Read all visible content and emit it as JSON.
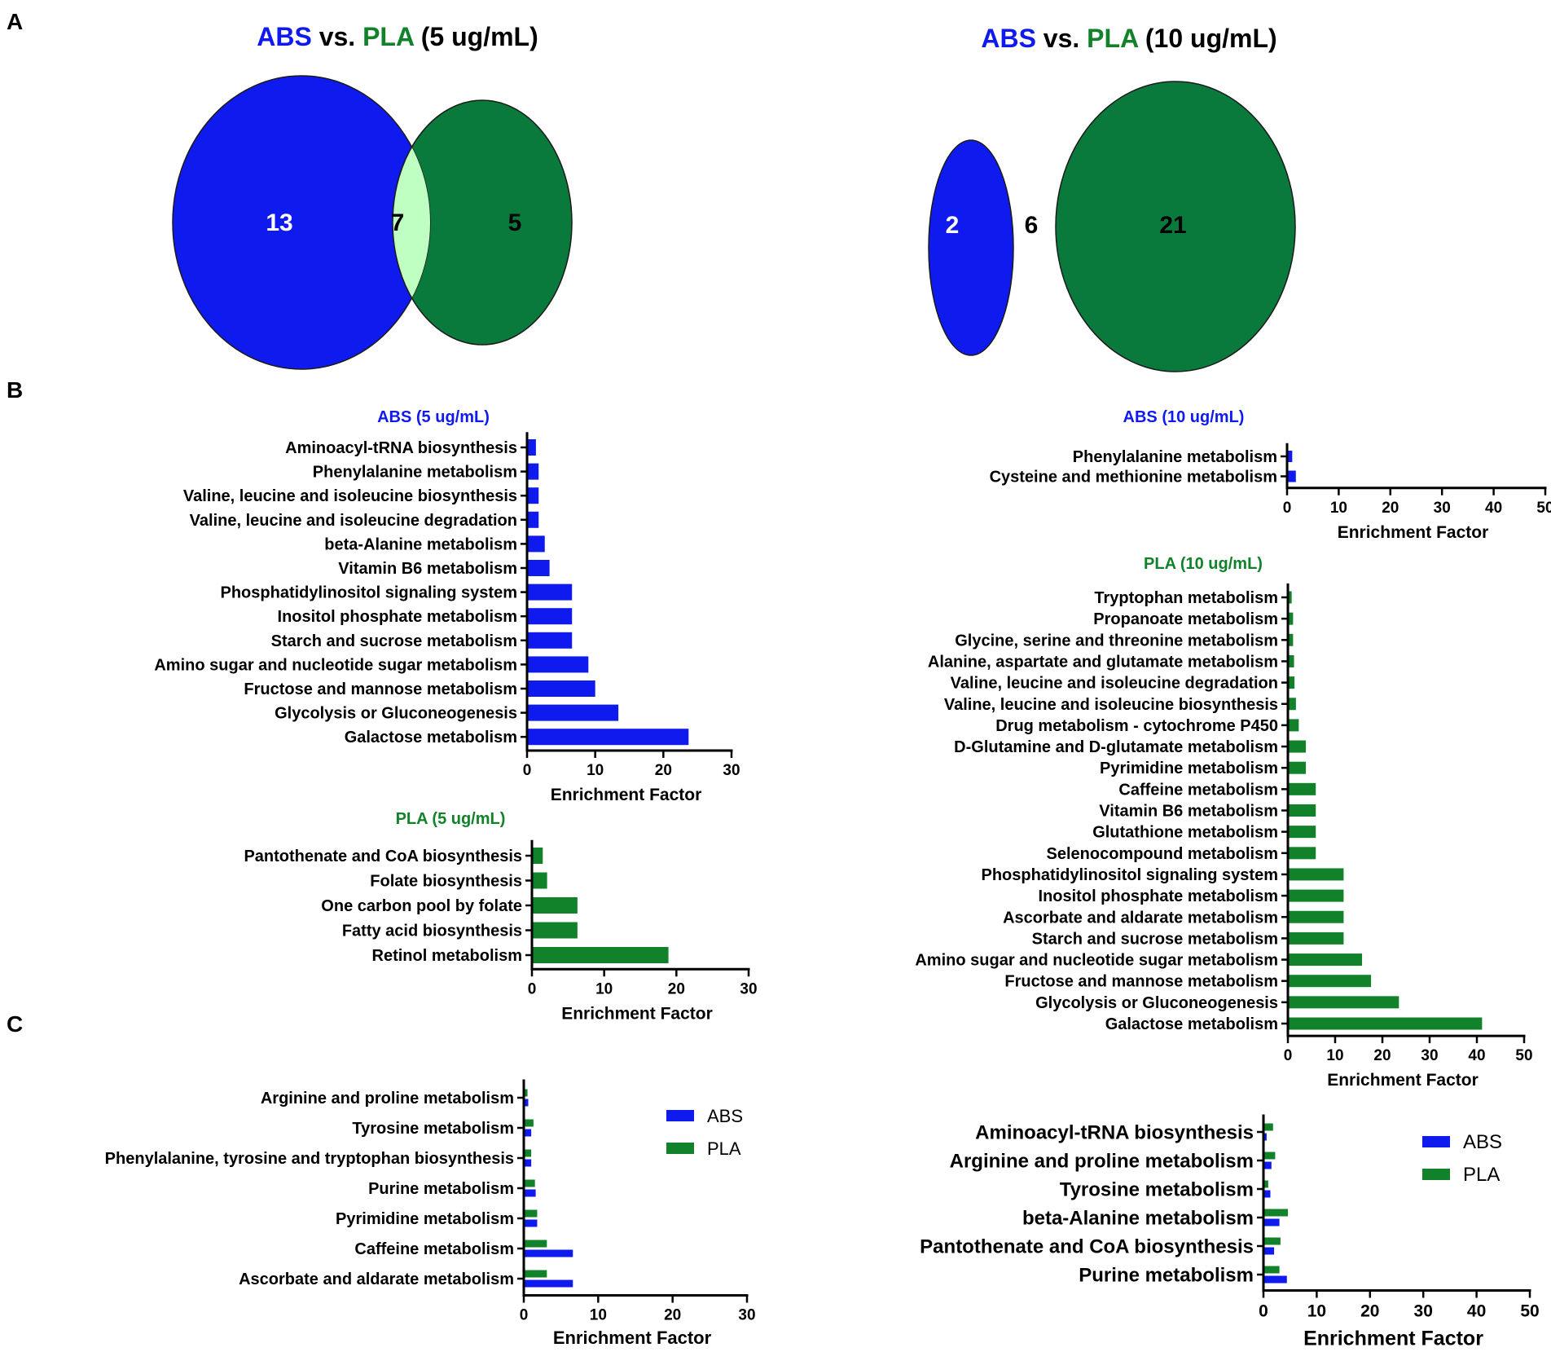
{
  "panel_labels": {
    "a": "A",
    "b": "B",
    "c": "C"
  },
  "colors": {
    "abs": "#0f1aef",
    "pla": "#11822a",
    "pla_dark": "#0a7a3c",
    "overlap": "#bfffc2",
    "venn_outline": "#1a1a1a",
    "axis": "#000000"
  },
  "venn": [
    {
      "title_parts": [
        "ABS",
        " vs. ",
        "PLA",
        " (5 ug/mL)"
      ],
      "abs_only": "13",
      "shared": "7",
      "pla_only": "5"
    },
    {
      "title_parts": [
        "ABS",
        " vs. ",
        "PLA",
        " (10 ug/mL)"
      ],
      "abs_only": "2",
      "shared": "6",
      "pla_only": "21"
    }
  ],
  "chart_data": [
    {
      "id": "abs5",
      "type": "bar",
      "orientation": "horizontal",
      "title": "ABS (5 ug/mL)",
      "xlabel": "Enrichment Factor",
      "ylabel": "",
      "xlim": [
        0,
        30
      ],
      "ticks": [
        0,
        10,
        20,
        30
      ],
      "color": "#0f1aef",
      "categories": [
        "Aminoacyl-tRNA biosynthesis",
        "Phenylalanine metabolism",
        "Valine, leucine and isoleucine biosynthesis",
        "Valine, leucine and isoleucine degradation",
        "beta-Alanine metabolism",
        "Vitamin B6 metabolism",
        "Phosphatidylinositol signaling system",
        "Inositol phosphate metabolism",
        "Starch and sucrose metabolism",
        "Amino sugar and nucleotide sugar metabolism",
        "Fructose and mannose metabolism",
        "Glycolysis or Gluconeogenesis",
        "Galactose metabolism"
      ],
      "values": [
        1.3,
        1.7,
        1.7,
        1.7,
        2.6,
        3.3,
        6.6,
        6.6,
        6.6,
        9.0,
        10.0,
        13.4,
        23.7
      ]
    },
    {
      "id": "pla5",
      "type": "bar",
      "orientation": "horizontal",
      "title": "PLA (5 ug/mL)",
      "xlabel": "Enrichment Factor",
      "ylabel": "",
      "xlim": [
        0,
        30
      ],
      "ticks": [
        0,
        10,
        20,
        30
      ],
      "color": "#11822a",
      "categories": [
        "Pantothenate and CoA biosynthesis",
        "Folate biosynthesis",
        "One carbon pool by folate",
        "Fatty acid biosynthesis",
        "Retinol metabolism"
      ],
      "values": [
        1.5,
        2.1,
        6.3,
        6.3,
        18.9
      ]
    },
    {
      "id": "abs10",
      "type": "bar",
      "orientation": "horizontal",
      "title": "ABS (10 ug/mL)",
      "xlabel": "Enrichment Factor",
      "ylabel": "",
      "xlim": [
        0,
        50
      ],
      "ticks": [
        0,
        10,
        20,
        30,
        40,
        50
      ],
      "color": "#0f1aef",
      "categories": [
        "Phenylalanine metabolism",
        "Cysteine and methionine metabolism"
      ],
      "values": [
        1.0,
        1.7
      ]
    },
    {
      "id": "pla10",
      "type": "bar",
      "orientation": "horizontal",
      "title": "PLA (10 ug/mL)",
      "xlabel": "Enrichment Factor",
      "ylabel": "",
      "xlim": [
        0,
        50
      ],
      "ticks": [
        0,
        10,
        20,
        30,
        40,
        50
      ],
      "color": "#11822a",
      "categories": [
        "Tryptophan metabolism",
        "Propanoate metabolism",
        "Glycine, serine and threonine metabolism",
        "Alanine, aspartate and glutamate metabolism",
        "Valine, leucine and isoleucine degradation",
        "Valine, leucine and isoleucine biosynthesis",
        "Drug metabolism - cytochrome P450",
        "D-Glutamine and D-glutamate metabolism",
        "Pyrimidine metabolism",
        "Caffeine metabolism",
        "Vitamin B6 metabolism",
        "Glutathione metabolism",
        "Selenocompound metabolism",
        "Phosphatidylinositol signaling system",
        "Inositol phosphate metabolism",
        "Ascorbate and aldarate metabolism",
        "Starch and sucrose metabolism",
        "Amino sugar and nucleotide sugar metabolism",
        "Fructose and mannose metabolism",
        "Glycolysis or Gluconeogenesis",
        "Galactose metabolism"
      ],
      "values": [
        0.8,
        1.1,
        1.1,
        1.3,
        1.4,
        1.7,
        2.3,
        3.8,
        3.8,
        5.9,
        5.9,
        5.9,
        5.9,
        11.8,
        11.8,
        11.8,
        11.8,
        15.7,
        17.6,
        23.5,
        41.1
      ]
    },
    {
      "id": "c5",
      "type": "bar",
      "orientation": "horizontal",
      "title": "",
      "xlabel": "Enrichment Factor",
      "ylabel": "",
      "xlim": [
        0,
        30
      ],
      "ticks": [
        0,
        10,
        20,
        30
      ],
      "legend": "top-right",
      "categories": [
        "Arginine and proline metabolism",
        "Tyrosine metabolism",
        "Phenylalanine, tyrosine and tryptophan biosynthesis",
        "Purine metabolism",
        "Pyrimidine metabolism",
        "Caffeine metabolism",
        "Ascorbate and aldarate metabolism"
      ],
      "series": [
        {
          "name": "ABS",
          "color": "#0f1aef",
          "values": [
            0.6,
            1.0,
            1.0,
            1.6,
            1.8,
            6.6,
            6.6
          ]
        },
        {
          "name": "PLA",
          "color": "#11822a",
          "values": [
            0.5,
            1.3,
            1.0,
            1.5,
            1.8,
            3.1,
            3.1
          ]
        }
      ]
    },
    {
      "id": "c10",
      "type": "bar",
      "orientation": "horizontal",
      "title": "",
      "xlabel": "Enrichment Factor",
      "ylabel": "",
      "xlim": [
        0,
        50
      ],
      "ticks": [
        0,
        10,
        20,
        30,
        40,
        50
      ],
      "legend": "top-right",
      "categories": [
        "Aminoacyl-tRNA biosynthesis",
        "Arginine and proline metabolism",
        "Tyrosine metabolism",
        "beta-Alanine metabolism",
        "Pantothenate and CoA biosynthesis",
        "Purine metabolism"
      ],
      "series": [
        {
          "name": "ABS",
          "color": "#0f1aef",
          "values": [
            0.6,
            1.5,
            1.3,
            3.0,
            2.0,
            4.4
          ]
        },
        {
          "name": "PLA",
          "color": "#11822a",
          "values": [
            1.8,
            2.2,
            0.9,
            4.6,
            3.2,
            3.0
          ]
        }
      ]
    }
  ]
}
